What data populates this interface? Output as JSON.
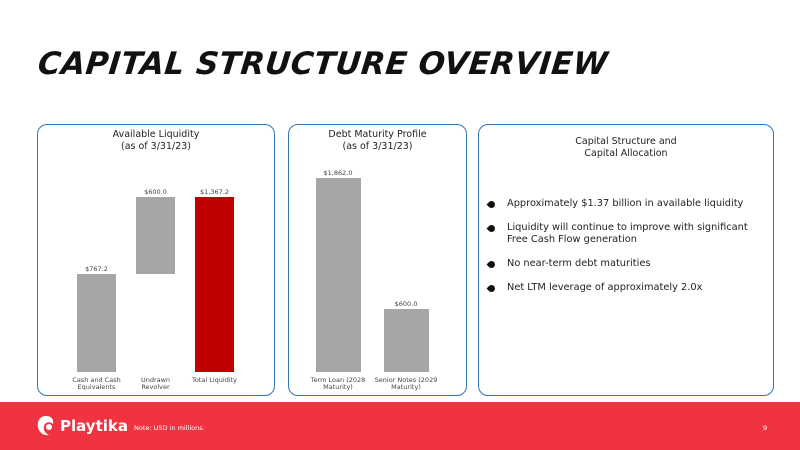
{
  "header": {
    "title": "CAPITAL STRUCTURE OVERVIEW"
  },
  "chart_data": [
    {
      "type": "waterfall",
      "title": "Available Liquidity",
      "subtitle": "(as of 3/31/23)",
      "categories": [
        "Cash and Cash Equivalents",
        "Undrawn Revolver",
        "Total Liquidity"
      ],
      "values": [
        767.2,
        600.0,
        1367.2
      ],
      "value_labels": [
        "$767.2",
        "$600.0",
        "$1,367.2"
      ],
      "measures": [
        "absolute",
        "relative",
        "total"
      ],
      "colors": [
        "#a6a6a6",
        "#a6a6a6",
        "#c00000"
      ]
    },
    {
      "type": "bar",
      "title": "Debt Maturity Profile",
      "subtitle": "(as of 3/31/23)",
      "categories": [
        "Term Loan (2028 Maturity)",
        "Senior Notes (2029 Maturity)"
      ],
      "values": [
        1862.0,
        600.0
      ],
      "value_labels": [
        "$1,862.0",
        "$600.0"
      ],
      "color": "#a6a6a6"
    }
  ],
  "panel": {
    "title": "Capital Structure and Capital Allocation",
    "bullets": [
      "Approximately $1.37 billion in available liquidity",
      "Liquidity will continue to improve with significant Free Cash Flow generation",
      "No near-term debt maturities",
      "Net LTM leverage of approximately 2.0x"
    ]
  },
  "footer": {
    "brand": "Playtika",
    "note": "Note: USD in millions.",
    "page": "9"
  }
}
